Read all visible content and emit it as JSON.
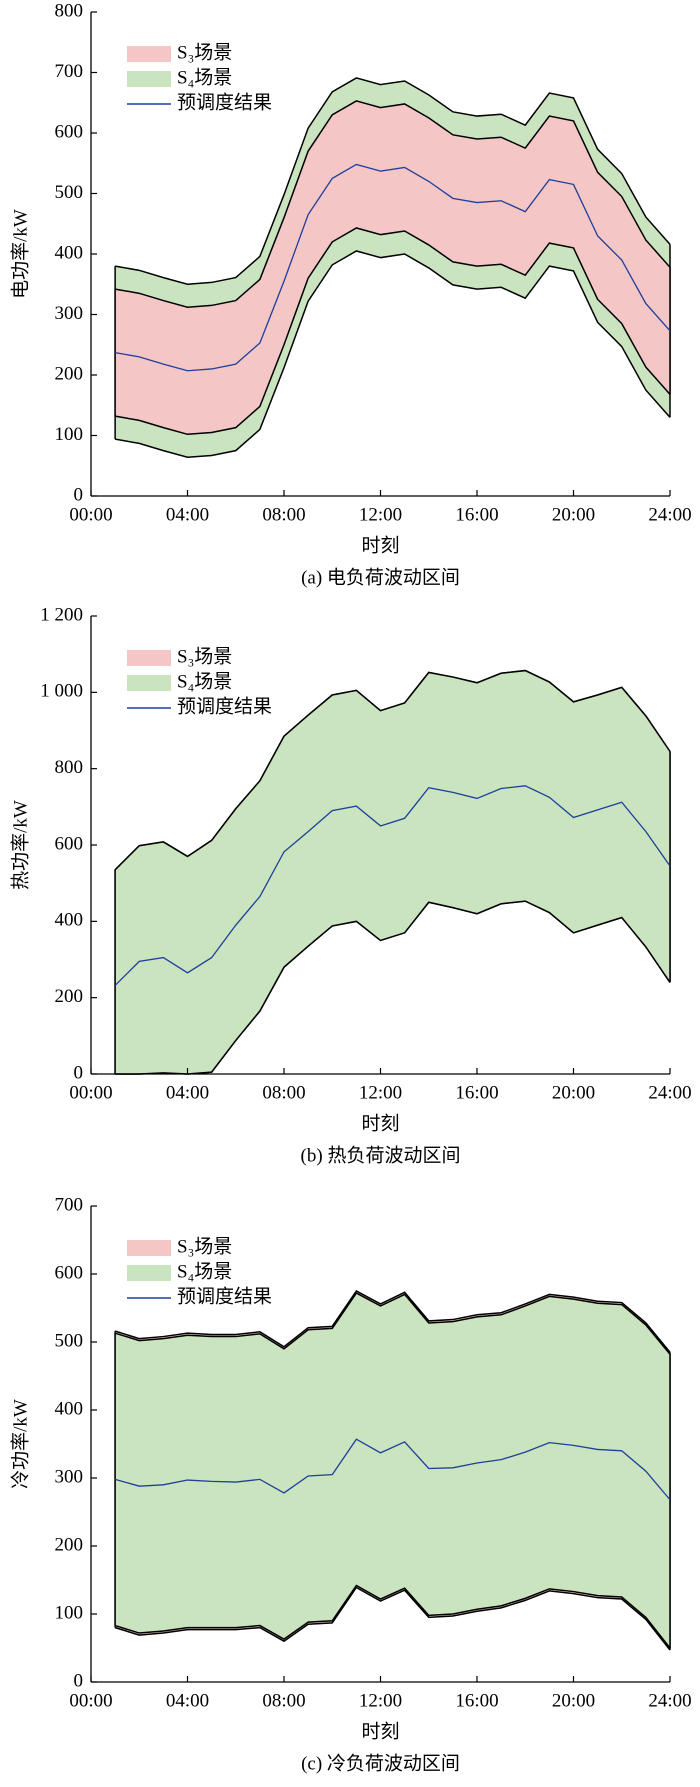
{
  "chart_data": [
    {
      "type": "band",
      "title": "(a) 电负荷波动区间",
      "x_label": "时刻",
      "y_label": "电功率/kW",
      "x": [
        1,
        2,
        3,
        4,
        5,
        6,
        7,
        8,
        9,
        10,
        11,
        12,
        13,
        14,
        15,
        16,
        17,
        18,
        19,
        20,
        21,
        22,
        23,
        24
      ],
      "xlim": [
        0,
        24
      ],
      "xticks": [
        {
          "value": 0,
          "label": "00:00"
        },
        {
          "value": 4,
          "label": "04:00"
        },
        {
          "value": 8,
          "label": "08:00"
        },
        {
          "value": 12,
          "label": "12:00"
        },
        {
          "value": 16,
          "label": "16:00"
        },
        {
          "value": 20,
          "label": "20:00"
        },
        {
          "value": 24,
          "label": "24:00"
        }
      ],
      "ylim": [
        0,
        800
      ],
      "yticks": [
        0,
        100,
        200,
        300,
        400,
        500,
        600,
        700,
        800
      ],
      "series": [
        {
          "name": "S₃场景",
          "color": "#f4c6c6",
          "upper": [
            342,
            335,
            323,
            312,
            315,
            323,
            358,
            460,
            570,
            630,
            653,
            642,
            648,
            625,
            597,
            590,
            593,
            575,
            628,
            620,
            535,
            495,
            423,
            378
          ],
          "lower": [
            132,
            125,
            113,
            102,
            105,
            113,
            148,
            250,
            360,
            420,
            443,
            432,
            438,
            415,
            387,
            380,
            383,
            365,
            418,
            410,
            325,
            285,
            213,
            168
          ]
        },
        {
          "name": "S₄场景",
          "color": "#c9e4bf",
          "upper": [
            380,
            373,
            361,
            350,
            353,
            361,
            396,
            498,
            608,
            668,
            691,
            680,
            686,
            663,
            635,
            628,
            631,
            613,
            666,
            658,
            573,
            533,
            461,
            416
          ],
          "lower": [
            94,
            87,
            75,
            64,
            67,
            75,
            110,
            212,
            322,
            382,
            405,
            394,
            400,
            377,
            349,
            342,
            345,
            327,
            380,
            372,
            287,
            247,
            175,
            130
          ]
        },
        {
          "name": "预调度结果",
          "color": "#1f3f9a",
          "values": [
            237,
            230,
            218,
            207,
            210,
            218,
            253,
            355,
            465,
            525,
            548,
            537,
            543,
            520,
            492,
            485,
            488,
            470,
            523,
            515,
            430,
            390,
            318,
            273
          ]
        }
      ]
    },
    {
      "type": "band",
      "title": "(b) 热负荷波动区间",
      "x_label": "时刻",
      "y_label": "热功率/kW",
      "x": [
        1,
        2,
        3,
        4,
        5,
        6,
        7,
        8,
        9,
        10,
        11,
        12,
        13,
        14,
        15,
        16,
        17,
        18,
        19,
        20,
        21,
        22,
        23,
        24
      ],
      "xlim": [
        0,
        24
      ],
      "xticks": [
        {
          "value": 0,
          "label": "00:00"
        },
        {
          "value": 4,
          "label": "04:00"
        },
        {
          "value": 8,
          "label": "08:00"
        },
        {
          "value": 12,
          "label": "12:00"
        },
        {
          "value": 16,
          "label": "16:00"
        },
        {
          "value": 20,
          "label": "20:00"
        },
        {
          "value": 24,
          "label": "24:00"
        }
      ],
      "ylim": [
        0,
        1200
      ],
      "yticks": [
        0,
        200,
        400,
        600,
        800,
        {
          "value": 1000,
          "label": "1 000"
        },
        {
          "value": 1200,
          "label": "1 200"
        }
      ],
      "series": [
        {
          "name": "S₃场景",
          "color": "#f4c6c6",
          "upper": [
            535,
            598,
            608,
            570,
            612,
            695,
            768,
            885,
            940,
            993,
            1005,
            952,
            972,
            1052,
            1040,
            1025,
            1050,
            1057,
            1027,
            975,
            993,
            1013,
            938,
            845
          ],
          "lower": [
            0,
            0,
            3,
            0,
            5,
            88,
            165,
            280,
            335,
            388,
            400,
            350,
            370,
            450,
            436,
            420,
            446,
            453,
            423,
            370,
            390,
            410,
            333,
            240
          ]
        },
        {
          "name": "S₄场景",
          "color": "#c9e4bf",
          "upper": [
            535,
            598,
            608,
            570,
            612,
            695,
            768,
            885,
            940,
            993,
            1005,
            952,
            972,
            1052,
            1040,
            1025,
            1050,
            1057,
            1027,
            975,
            993,
            1013,
            938,
            845
          ],
          "lower": [
            0,
            0,
            3,
            0,
            5,
            88,
            165,
            280,
            335,
            388,
            400,
            350,
            370,
            450,
            436,
            420,
            446,
            453,
            423,
            370,
            390,
            410,
            333,
            240
          ]
        },
        {
          "name": "预调度结果",
          "color": "#1f3f9a",
          "values": [
            232,
            295,
            305,
            265,
            305,
            390,
            465,
            582,
            635,
            690,
            702,
            650,
            670,
            750,
            738,
            722,
            748,
            755,
            725,
            672,
            692,
            712,
            635,
            545
          ]
        }
      ]
    },
    {
      "type": "band",
      "title": "(c) 冷负荷波动区间",
      "x_label": "时刻",
      "y_label": "冷功率/kW",
      "x": [
        1,
        2,
        3,
        4,
        5,
        6,
        7,
        8,
        9,
        10,
        11,
        12,
        13,
        14,
        15,
        16,
        17,
        18,
        19,
        20,
        21,
        22,
        23,
        24
      ],
      "xlim": [
        0,
        24
      ],
      "xticks": [
        {
          "value": 0,
          "label": "00:00"
        },
        {
          "value": 4,
          "label": "04:00"
        },
        {
          "value": 8,
          "label": "08:00"
        },
        {
          "value": 12,
          "label": "12:00"
        },
        {
          "value": 16,
          "label": "16:00"
        },
        {
          "value": 20,
          "label": "20:00"
        },
        {
          "value": 24,
          "label": "24:00"
        }
      ],
      "ylim": [
        0,
        700
      ],
      "yticks": [
        0,
        100,
        200,
        300,
        400,
        500,
        600,
        700
      ],
      "series": [
        {
          "name": "S₃场景",
          "color": "#f4c6c6",
          "upper": [
            516,
            505,
            508,
            513,
            511,
            511,
            515,
            493,
            521,
            523,
            575,
            556,
            573,
            531,
            533,
            540,
            543,
            556,
            570,
            566,
            560,
            558,
            528,
            485
          ],
          "lower": [
            80,
            69,
            72,
            77,
            77,
            77,
            80,
            60,
            85,
            87,
            139,
            119,
            135,
            95,
            97,
            104,
            109,
            120,
            134,
            130,
            124,
            122,
            92,
            47
          ]
        },
        {
          "name": "S₄场景",
          "color": "#c9e4bf",
          "upper": [
            513,
            502,
            505,
            510,
            508,
            508,
            512,
            490,
            518,
            520,
            572,
            553,
            570,
            528,
            530,
            537,
            540,
            553,
            567,
            563,
            557,
            555,
            525,
            482
          ],
          "lower": [
            83,
            72,
            75,
            80,
            80,
            80,
            83,
            63,
            88,
            90,
            142,
            122,
            138,
            98,
            100,
            107,
            112,
            123,
            137,
            133,
            127,
            125,
            95,
            50
          ]
        },
        {
          "name": "预调度结果",
          "color": "#1f3f9a",
          "values": [
            298,
            288,
            290,
            297,
            295,
            294,
            298,
            278,
            303,
            305,
            357,
            337,
            353,
            314,
            315,
            322,
            327,
            338,
            352,
            348,
            342,
            340,
            310,
            268
          ]
        }
      ]
    }
  ]
}
